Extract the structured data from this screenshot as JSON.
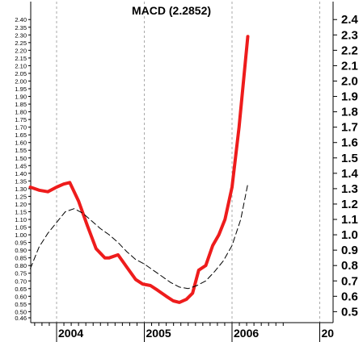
{
  "chart_data": {
    "type": "line",
    "title": "MACD (2.2852)",
    "left_axis": {
      "ticks": [
        "0.46",
        "0.50",
        "0.55",
        "0.60",
        "0.65",
        "0.70",
        "0.75",
        "0.80",
        "0.85",
        "0.90",
        "0.95",
        "1.00",
        "1.05",
        "1.10",
        "1.15",
        "1.20",
        "1.25",
        "1.30",
        "1.35",
        "1.40",
        "1.45",
        "1.50",
        "1.55",
        "1.60",
        "1.65",
        "1.70",
        "1.75",
        "1.80",
        "1.85",
        "1.90",
        "1.95",
        "2.00",
        "2.05",
        "2.10",
        "2.15",
        "2.20",
        "2.25",
        "2.30",
        "2.35",
        "2.40"
      ]
    },
    "right_axis": {
      "ticks": [
        "0.5",
        "0.6",
        "0.7",
        "0.8",
        "0.9",
        "1.0",
        "1.1",
        "1.2",
        "1.3",
        "1.4",
        "1.5",
        "1.6",
        "1.7",
        "1.8",
        "1.9",
        "2.0",
        "2.1",
        "2.2",
        "2.3",
        "2.4"
      ]
    },
    "x_ticks": [
      "2004",
      "2005",
      "2006",
      "20"
    ],
    "ylim": [
      0.42,
      2.45
    ],
    "xlim": [
      2003.7,
      2007.0
    ],
    "grid": "vertical dashed at year boundaries",
    "series": [
      {
        "style": "solid",
        "color": "#ee1c1c",
        "x": [
          2003.7,
          2003.8,
          2003.9,
          2004.0,
          2004.08,
          2004.15,
          2004.25,
          2004.35,
          2004.45,
          2004.55,
          2004.6,
          2004.7,
          2004.8,
          2004.9,
          2004.98,
          2005.07,
          2005.15,
          2005.25,
          2005.33,
          2005.4,
          2005.48,
          2005.55,
          2005.62,
          2005.7,
          2005.78,
          2005.85,
          2005.92,
          2006.0,
          2006.08,
          2006.18
        ],
        "y": [
          1.31,
          1.29,
          1.28,
          1.31,
          1.33,
          1.34,
          1.22,
          1.06,
          0.91,
          0.85,
          0.85,
          0.87,
          0.79,
          0.71,
          0.68,
          0.67,
          0.64,
          0.6,
          0.57,
          0.56,
          0.58,
          0.62,
          0.77,
          0.8,
          0.93,
          1.0,
          1.1,
          1.31,
          1.7,
          2.29
        ]
      },
      {
        "style": "dashed",
        "color": "#000000",
        "x": [
          2003.7,
          2003.8,
          2003.9,
          2004.0,
          2004.1,
          2004.2,
          2004.3,
          2004.4,
          2004.5,
          2004.6,
          2004.7,
          2004.8,
          2004.9,
          2005.0,
          2005.1,
          2005.2,
          2005.3,
          2005.4,
          2005.5,
          2005.6,
          2005.7,
          2005.8,
          2005.9,
          2006.0,
          2006.1,
          2006.18
        ],
        "y": [
          0.78,
          0.92,
          1.01,
          1.08,
          1.15,
          1.17,
          1.14,
          1.09,
          1.04,
          1.0,
          0.95,
          0.89,
          0.84,
          0.81,
          0.77,
          0.73,
          0.69,
          0.66,
          0.65,
          0.67,
          0.7,
          0.76,
          0.83,
          0.93,
          1.1,
          1.33
        ]
      }
    ]
  }
}
